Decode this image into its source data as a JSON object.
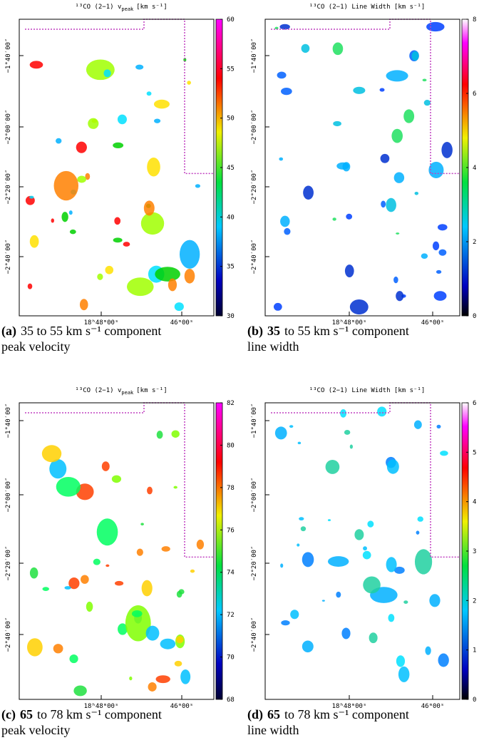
{
  "panels": [
    {
      "title_main": "¹³CO (2−1) v",
      "title_sub": "peak",
      "title_end": "[km s⁻¹]",
      "dec_labels": [
        "−1°40′00″",
        "−2°00′00″",
        "−2°20′00″",
        "−2°40′00″"
      ],
      "ra_labels": [
        "18ʰ48ᵐ00ˢ",
        "46ᵐ00ˢ"
      ],
      "cbar_lim": [
        30,
        60
      ],
      "cbar_ticks": [
        30,
        35,
        40,
        45,
        50,
        55,
        60
      ],
      "caption": {
        "label": "(a)",
        "line1": "35 to 55 km s⁻¹ component",
        "line2": "peak velocity"
      }
    },
    {
      "title_main": "¹³CO (2−1) Line Width [km s⁻¹]",
      "dec_labels": [
        "−1°40′00″",
        "−2°00′00″",
        "−2°20′00″",
        "−2°40′00″"
      ],
      "ra_labels": [
        "18ʰ48ᵐ00ˢ",
        "46ᵐ00ˢ"
      ],
      "cbar_lim": [
        0,
        8
      ],
      "cbar_ticks": [
        0,
        2,
        4,
        6,
        8
      ],
      "caption": {
        "label": "(b)",
        "bold": "35",
        "line1": "to 55 km s⁻¹ component",
        "line2": "line width"
      }
    },
    {
      "title_main": "¹³CO (2−1) v",
      "title_sub": "peak",
      "title_end": "[km s⁻¹]",
      "dec_labels": [
        "−1°40′00″",
        "−2°00′00″",
        "−2°20′00″",
        "−2°40′00″"
      ],
      "ra_labels": [
        "18ʰ48ᵐ00ˢ",
        "46ᵐ00ˢ"
      ],
      "cbar_lim": [
        68,
        82
      ],
      "cbar_ticks": [
        68,
        70,
        72,
        74,
        76,
        78,
        80,
        82
      ],
      "caption": {
        "label": "(c)",
        "bold": "65",
        "line1": "to 78 km s⁻¹ component",
        "line2": "peak velocity"
      }
    },
    {
      "title_main": "¹³CO (2−1) Line Width [km s⁻¹]",
      "dec_labels": [
        "−1°40′00″",
        "−2°00′00″",
        "−2°20′00″",
        "−2°40′00″"
      ],
      "ra_labels": [
        "18ʰ48ᵐ00ˢ",
        "46ᵐ00ˢ"
      ],
      "cbar_lim": [
        0,
        6
      ],
      "cbar_ticks": [
        0,
        1,
        2,
        3,
        4,
        5,
        6
      ],
      "caption": {
        "label": "(d)",
        "bold": "65",
        "line1": "to 78 km s⁻¹ component",
        "line2": "line width"
      }
    }
  ]
}
